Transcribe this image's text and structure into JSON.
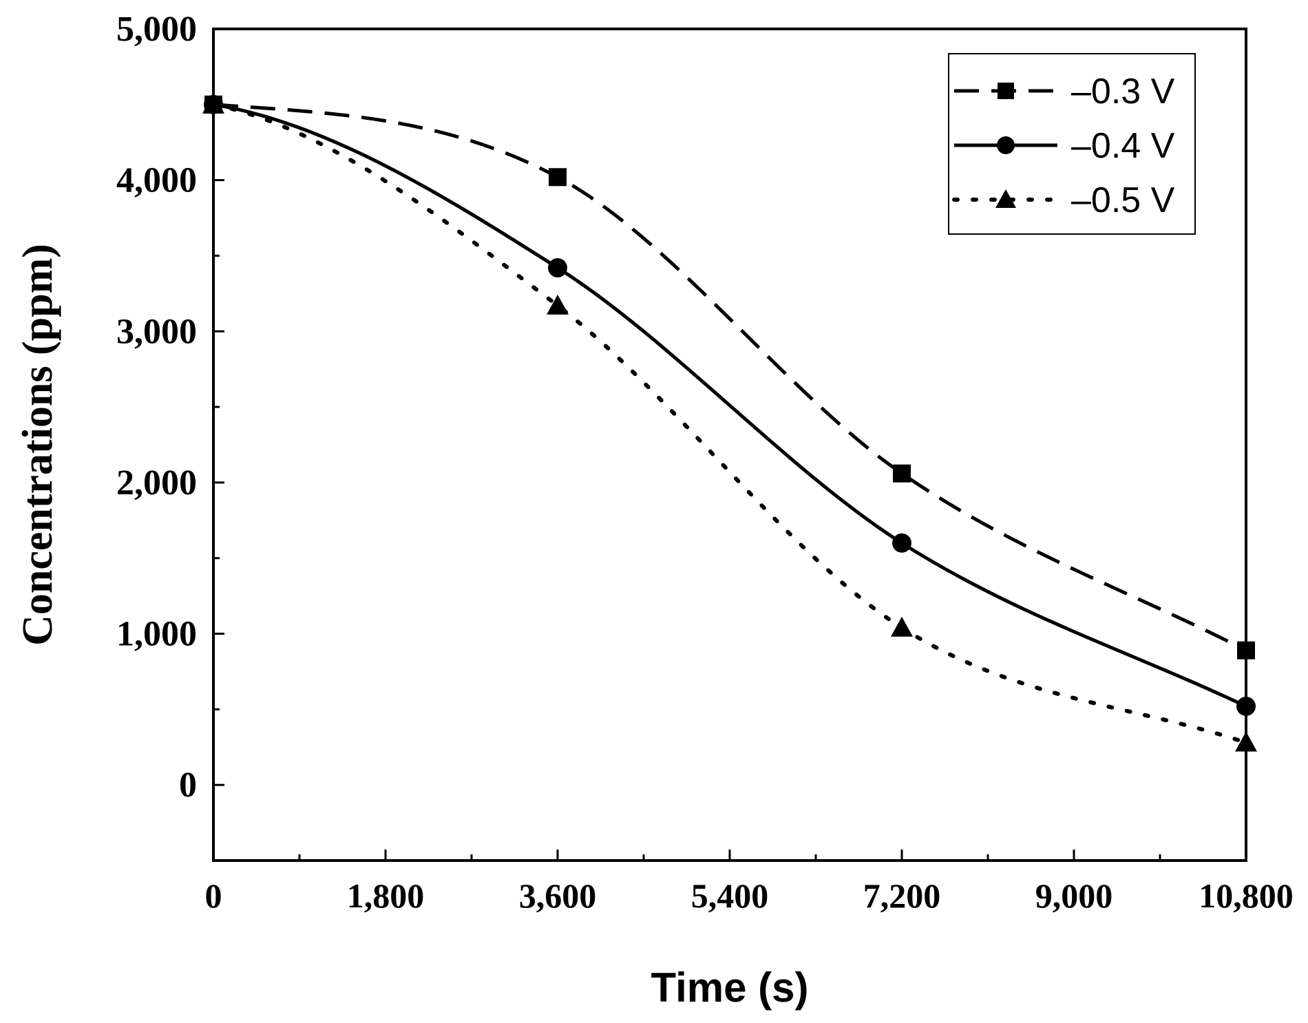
{
  "chart_data": {
    "type": "line",
    "title": "",
    "xlabel": "Time (s)",
    "ylabel": "Concentrations (ppm)",
    "xlim": [
      0,
      10800
    ],
    "ylim": [
      -500,
      5000
    ],
    "x_ticks": [
      0,
      1800,
      3600,
      5400,
      7200,
      9000,
      10800
    ],
    "x_tick_labels": [
      "0",
      "1,800",
      "3,600",
      "5,400",
      "7,200",
      "9,000",
      "10,800"
    ],
    "y_ticks": [
      0,
      1000,
      2000,
      3000,
      4000,
      5000
    ],
    "y_tick_labels": [
      "0",
      "1,000",
      "2,000",
      "3,000",
      "4,000",
      "5,000"
    ],
    "grid": false,
    "legend_position": "top-right",
    "series": [
      {
        "name": "–0.3 V",
        "marker": "square",
        "line_style": "dashed",
        "x": [
          0,
          3600,
          7200,
          10800
        ],
        "y": [
          4500,
          4020,
          2060,
          890
        ]
      },
      {
        "name": "–0.4 V",
        "marker": "circle",
        "line_style": "solid",
        "x": [
          0,
          3600,
          7200,
          10800
        ],
        "y": [
          4500,
          3420,
          1600,
          520
        ]
      },
      {
        "name": "–0.5 V",
        "marker": "triangle",
        "line_style": "dotted",
        "x": [
          0,
          3600,
          7200,
          10800
        ],
        "y": [
          4500,
          3170,
          1040,
          280
        ]
      }
    ]
  }
}
